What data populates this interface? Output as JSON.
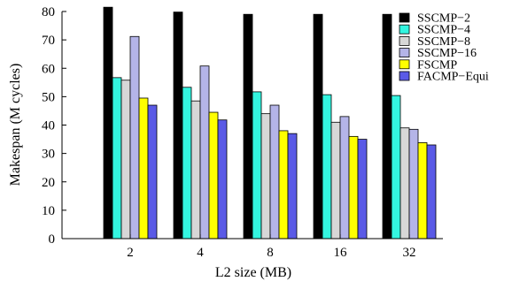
{
  "chart_data": {
    "type": "bar",
    "xlabel": "L2 size (MB)",
    "ylabel": "Makespan (M cycles)",
    "ylim": [
      0,
      80
    ],
    "yticks": [
      0,
      10,
      20,
      30,
      40,
      50,
      60,
      70,
      80
    ],
    "categories": [
      "2",
      "4",
      "8",
      "16",
      "32"
    ],
    "legend_position": "top-right",
    "grid": false,
    "series": [
      {
        "name": "SSCMP−2",
        "color": "#000000",
        "values": [
          81.5,
          79.8,
          79.0,
          79.0,
          79.0
        ]
      },
      {
        "name": "SSCMP−4",
        "color": "#33f5e0",
        "values": [
          56.7,
          53.3,
          51.7,
          50.7,
          50.4
        ]
      },
      {
        "name": "SSCMP−8",
        "color": "#d7d7d7",
        "values": [
          55.8,
          48.5,
          44.0,
          41.0,
          39.0
        ]
      },
      {
        "name": "SSCMP−16",
        "color": "#b4b4e8",
        "values": [
          71.2,
          60.8,
          47.0,
          43.0,
          38.5
        ]
      },
      {
        "name": "FSCMP",
        "color": "#ffff00",
        "values": [
          49.5,
          44.5,
          38.0,
          36.0,
          33.8
        ]
      },
      {
        "name": "FACMP−Equi",
        "color": "#5a5ae6",
        "values": [
          47.0,
          41.8,
          37.0,
          35.0,
          33.0
        ]
      }
    ]
  }
}
